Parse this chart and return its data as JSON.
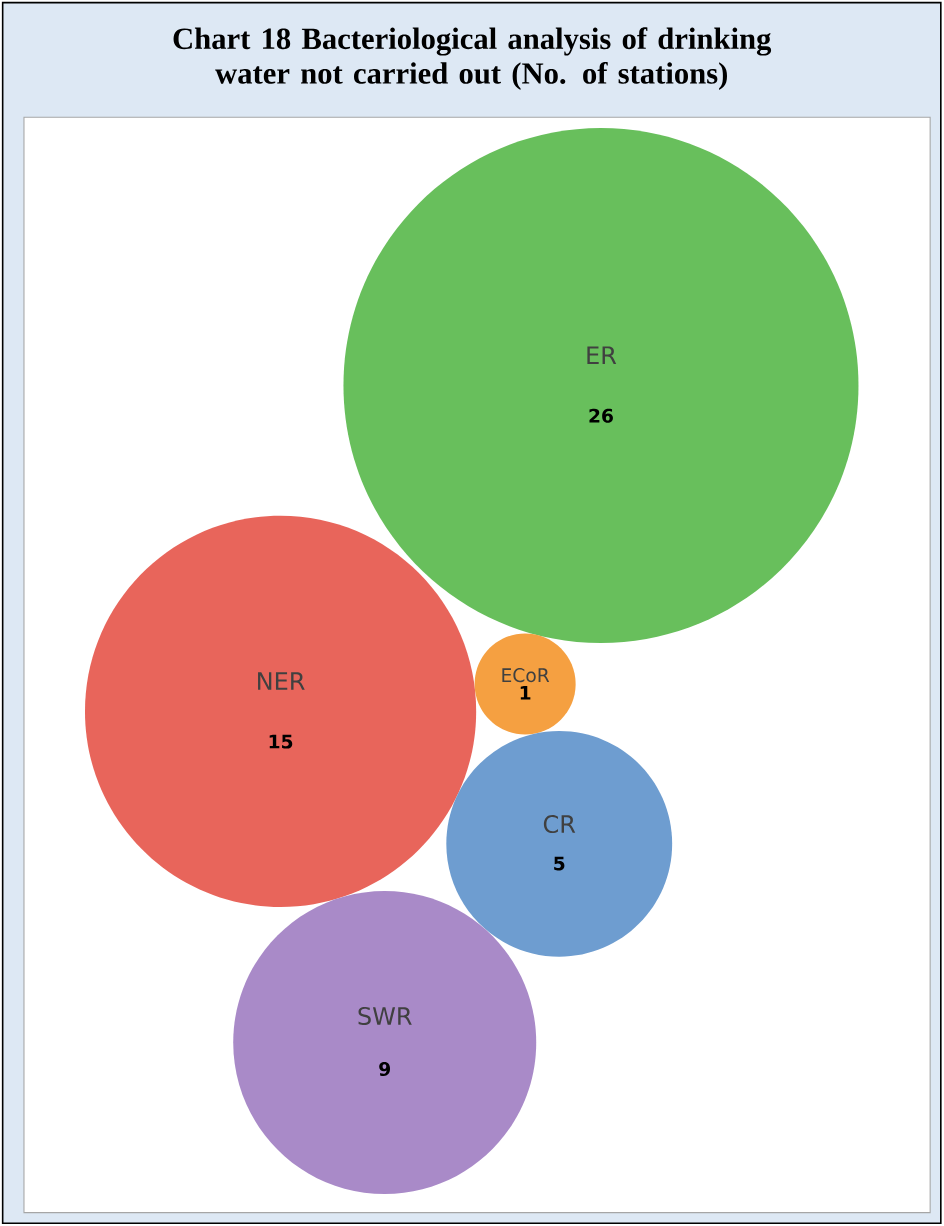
{
  "chart_data": {
    "type": "other",
    "title": "Chart 18 Bacteriological analysis of drinking water not carried out (No. of stations)",
    "categories": [
      "ER",
      "NER",
      "ECoR",
      "CR",
      "SWR"
    ],
    "values": [
      26,
      15,
      1,
      5,
      9
    ],
    "data_labels": true,
    "colors": [
      "#68bf5c",
      "#e8655b",
      "#f5a041",
      "#6e9dd0",
      "#a98ac8"
    ]
  }
}
